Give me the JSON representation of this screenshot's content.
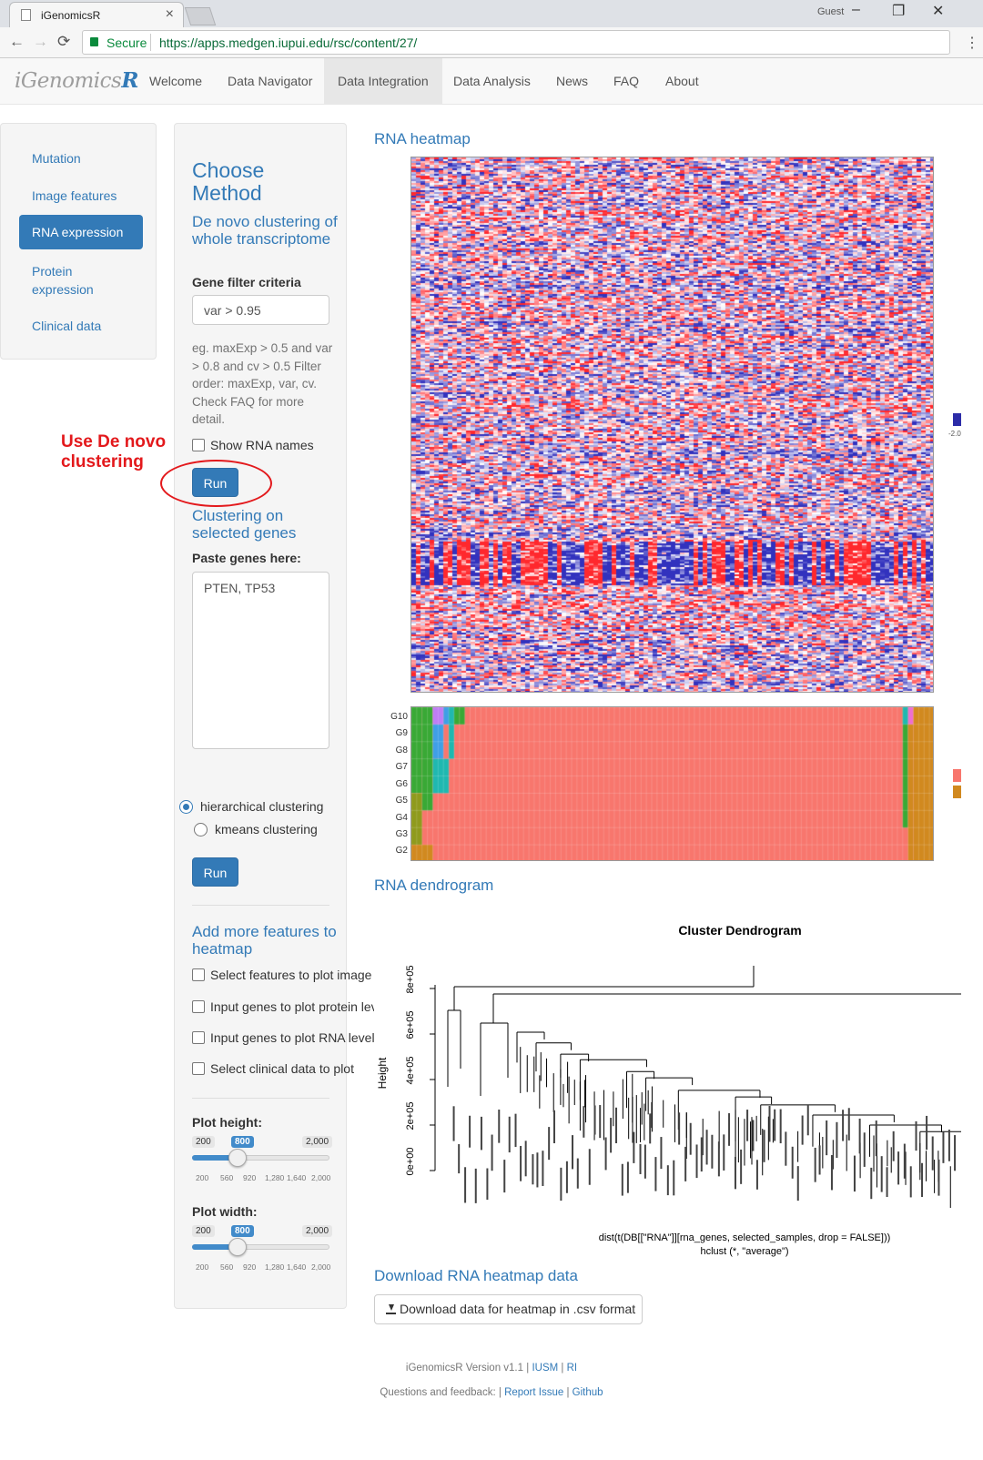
{
  "browser": {
    "tab_title": "iGenomicsR",
    "tab_close": "×",
    "user": "Guest",
    "window_buttons": [
      "–",
      "❐",
      "✕"
    ],
    "nav_back": "←",
    "nav_forward": "→",
    "nav_reload": "⟳",
    "secure_label": "Secure",
    "url": "https://apps.medgen.iupui.edu/rsc/content/27/",
    "menu": "⋮"
  },
  "app": {
    "brand_prefix": "iGenomics",
    "brand_suffix": "R",
    "nav": [
      "Welcome",
      "Data Navigator",
      "Data Integration",
      "Data Analysis",
      "News",
      "FAQ",
      "About"
    ],
    "active_nav": "Data Integration"
  },
  "sidebar": {
    "items": [
      "Mutation",
      "Image features",
      "RNA expression",
      "Protein expression",
      "Clinical data"
    ],
    "active": "RNA expression"
  },
  "controls": {
    "title": "Choose Method",
    "denovo_title": "De novo clustering of whole transcriptome",
    "gene_filter_label": "Gene filter criteria",
    "gene_filter_value": "var > 0.95",
    "help_text": "eg. maxExp > 0.5 and var > 0.8 and cv > 0.5 Filter order: maxExp, var, cv. Check FAQ for more detail.",
    "show_rna_names": "Show RNA names",
    "run_label": "Run",
    "selected_title": "Clustering on selected genes",
    "paste_label": "Paste genes here:",
    "genes_value": "PTEN, TP53",
    "method_hier": "hierarchical clustering",
    "method_kmeans": "kmeans clustering",
    "run2_label": "Run",
    "more_title": "Add more features to heatmap",
    "more_options": [
      "Select features to plot image data",
      "Input genes to plot protein levels",
      "Input genes to plot RNA levels",
      "Select clinical data to plot"
    ],
    "plot_height_label": "Plot height:",
    "plot_width_label": "Plot width:",
    "slider_min": "200",
    "slider_max": "2,000",
    "slider_value": "800",
    "slider_value_num": 800,
    "slider_ticks": [
      "200",
      "560",
      "920",
      "1,280",
      "1,640",
      "2,000"
    ]
  },
  "annotation": {
    "text": "Use De novo clustering",
    "color": "#e3191c"
  },
  "main": {
    "heatmap_title": "RNA heatmap",
    "legend_tick": "-2.0",
    "cluster_rows": [
      "G10",
      "G9",
      "G8",
      "G7",
      "G6",
      "G5",
      "G4",
      "G3",
      "G2"
    ],
    "dendrogram_title": "RNA dendrogram",
    "dendro_plot_title": "Cluster Dendrogram",
    "dendro_ylabel": "Height",
    "dendro_yticks": [
      "0e+00",
      "2e+05",
      "4e+05",
      "6e+05",
      "8e+05"
    ],
    "dendro_caption": "dist(t(DB[[\"RNA\"]][rna_genes, selected_samples, drop = FALSE]))",
    "dendro_caption2": "hclust (*, \"average\")",
    "download_title": "Download RNA heatmap data",
    "download_button": "Download data for heatmap in .csv format",
    "download_icon": "download-icon"
  },
  "footer": {
    "version": "iGenomicsR Version v1.1",
    "sep": "|",
    "iusm": "IUSM",
    "ri": "RI",
    "questions": "Questions and feedback:",
    "report": "Report Issue",
    "github": "Github"
  },
  "colors": {
    "accent": "#337ab7",
    "heat_low": "#2c2ca8",
    "heat_high": "#e8202a",
    "cluster_main": "#f8766d",
    "cluster_green": "#39a935",
    "cluster_olive": "#8f9a1c",
    "cluster_orange": "#d1891f",
    "cluster_cyan": "#1fb8b0",
    "cluster_blue": "#3f9fe6",
    "cluster_violet": "#bf7df5",
    "cluster_pink": "#ee6fd0"
  }
}
